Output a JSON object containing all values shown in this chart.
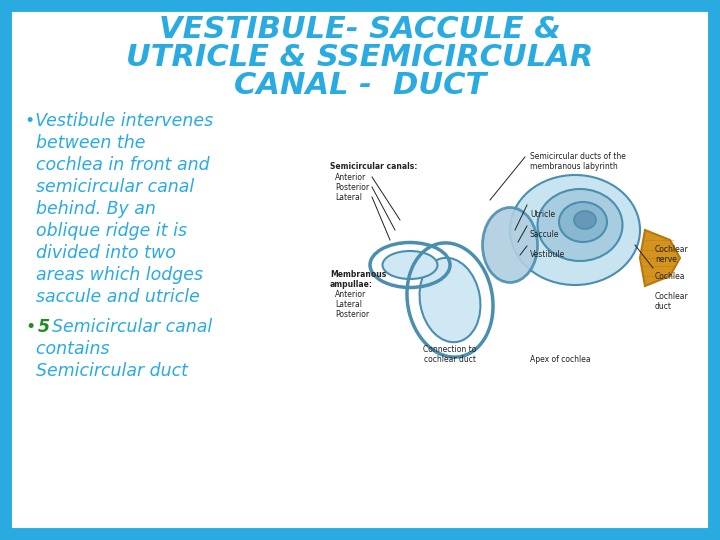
{
  "title_line1": "VESTIBULE- SACCULE &",
  "title_line2": "UTRICLE & SSEMICIRCULAR",
  "title_line3": "CANAL -  DUCT",
  "title_color": "#29ABE2",
  "title_fontsize": 22,
  "background_color": "#FFFFFF",
  "border_color": "#29ABE2",
  "border_linewidth": 10,
  "bullet_color": "#29ABE2",
  "bullet_fontsize": 12.5,
  "bullet2_prefix_color": "#228B22",
  "text_color": "#29ABE2",
  "bullet1_lines": [
    "•Vestibule intervenes",
    "  between the",
    "  cochlea in front and",
    "  semicircular canal",
    "  behind. By an",
    "  oblique ridge it is",
    "  divided into two",
    "  areas which lodges",
    "  saccule and utricle"
  ],
  "bullet2_lines": [
    "5 Semicircular canal",
    "  contains",
    "  Semicircular duct"
  ]
}
